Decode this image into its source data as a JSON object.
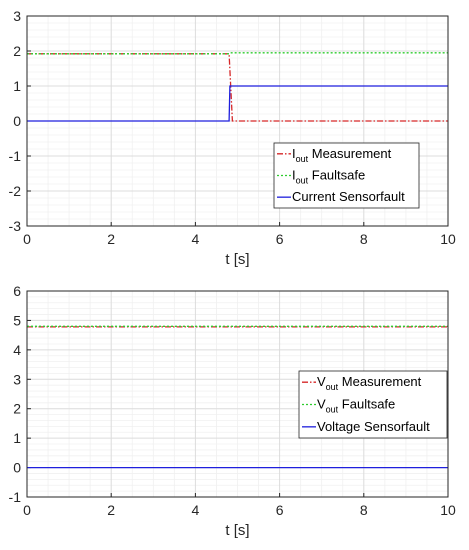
{
  "chart_data": [
    {
      "type": "line",
      "xlabel": "t [s]",
      "ylabel": "",
      "xlim": [
        0,
        10
      ],
      "ylim": [
        -3,
        3
      ],
      "xticks": [
        0,
        2,
        4,
        6,
        8,
        10
      ],
      "yticks": [
        -3,
        -2,
        -1,
        0,
        1,
        2,
        3
      ],
      "grid": true,
      "minor_grid": true,
      "legend_position": "lower-right",
      "series": [
        {
          "name_main": "I",
          "name_sub": "out",
          "name_rest": " Measurement",
          "color": "#d62728",
          "style": "dashdot",
          "x": [
            0,
            4.8,
            4.88,
            10
          ],
          "y": [
            1.92,
            1.92,
            0.0,
            0.0
          ]
        },
        {
          "name_main": "I",
          "name_sub": "out",
          "name_rest": " Faultsafe",
          "color": "#2ecc2e",
          "style": "dotted",
          "x": [
            0,
            4.8,
            4.83,
            10
          ],
          "y": [
            1.92,
            1.92,
            1.95,
            1.95
          ]
        },
        {
          "name_main": "Current Sensorfault",
          "name_sub": "",
          "name_rest": "",
          "color": "#1f1fdd",
          "style": "solid",
          "x": [
            0,
            4.8,
            4.82,
            10
          ],
          "y": [
            0,
            0,
            1,
            1
          ]
        }
      ]
    },
    {
      "type": "line",
      "xlabel": "t [s]",
      "ylabel": "",
      "xlim": [
        0,
        10
      ],
      "ylim": [
        -1,
        6
      ],
      "xticks": [
        0,
        2,
        4,
        6,
        8,
        10
      ],
      "yticks": [
        -1,
        0,
        1,
        2,
        3,
        4,
        5,
        6
      ],
      "grid": true,
      "minor_grid": true,
      "legend_position": "lower-right",
      "series": [
        {
          "name_main": "V",
          "name_sub": "out",
          "name_rest": " Measurement",
          "color": "#d62728",
          "style": "dashdot",
          "x": [
            0,
            10
          ],
          "y": [
            4.78,
            4.78
          ]
        },
        {
          "name_main": "V",
          "name_sub": "out",
          "name_rest": " Faultsafe",
          "color": "#2ecc2e",
          "style": "dotted",
          "x": [
            0,
            10
          ],
          "y": [
            4.8,
            4.8
          ]
        },
        {
          "name_main": "Voltage Sensorfault",
          "name_sub": "",
          "name_rest": "",
          "color": "#1f1fdd",
          "style": "solid",
          "x": [
            0,
            10
          ],
          "y": [
            0,
            0
          ]
        }
      ]
    }
  ]
}
